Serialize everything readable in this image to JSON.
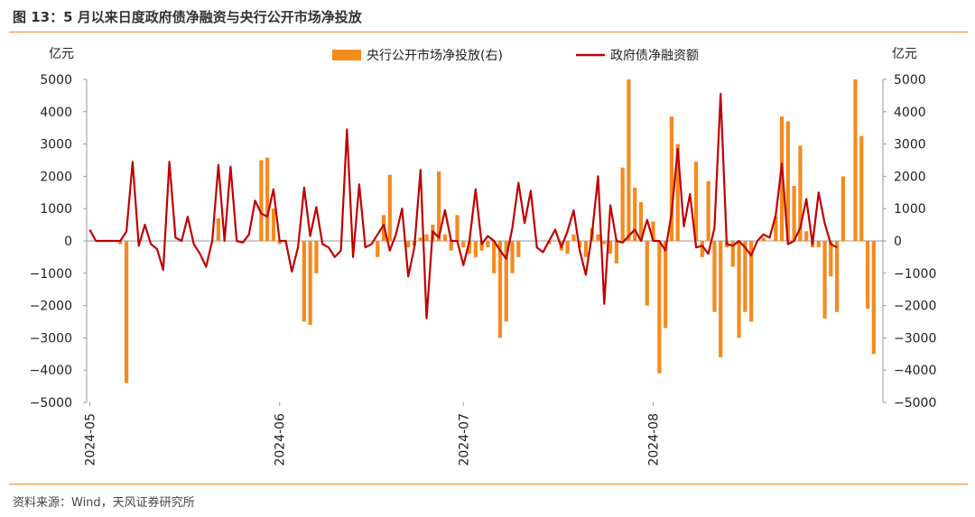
{
  "header": {
    "title": "图 13：5 月以来日度政府债净融资与央行公开市场净投放",
    "source": "资料来源：Wind，天风证券研究所"
  },
  "colors": {
    "bar": "#f58a1f",
    "line": "#c00000",
    "rule": "#f08a24",
    "axis": "#9a9a9a"
  },
  "chart_data": {
    "type": "bar+line",
    "x_ticks": [
      "2024-05",
      "2024-06",
      "2024-07",
      "2024-08"
    ],
    "x_tick_index": [
      0,
      31,
      61,
      92
    ],
    "num_days": 124,
    "left_axis": {
      "unit": "亿元",
      "range": [
        -5000,
        5000
      ],
      "ticks": [
        -5000,
        -4000,
        -3000,
        -2000,
        -1000,
        0,
        1000,
        2000,
        3000,
        4000,
        5000
      ]
    },
    "right_axis": {
      "unit": "亿元",
      "range": [
        -5000,
        5000
      ],
      "ticks": [
        -5000,
        -4000,
        -3000,
        -2000,
        -1000,
        0,
        1000,
        2000,
        3000,
        4000,
        5000
      ]
    },
    "legend": {
      "placement": "top-center"
    },
    "series": [
      {
        "name": "央行公开市场净投放(右)",
        "kind": "bar",
        "axis": "right",
        "points": [
          [
            5,
            -100
          ],
          [
            6,
            -4400
          ],
          [
            21,
            700
          ],
          [
            28,
            2500
          ],
          [
            29,
            2580
          ],
          [
            30,
            1000
          ],
          [
            31,
            -100
          ],
          [
            35,
            -2500
          ],
          [
            36,
            -2600
          ],
          [
            37,
            -1000
          ],
          [
            47,
            -500
          ],
          [
            48,
            800
          ],
          [
            49,
            2050
          ],
          [
            52,
            -200
          ],
          [
            53,
            -150
          ],
          [
            54,
            100
          ],
          [
            55,
            200
          ],
          [
            56,
            500
          ],
          [
            57,
            2150
          ],
          [
            58,
            200
          ],
          [
            59,
            -300
          ],
          [
            60,
            800
          ],
          [
            61,
            -200
          ],
          [
            62,
            -400
          ],
          [
            63,
            -500
          ],
          [
            64,
            -300
          ],
          [
            65,
            -200
          ],
          [
            66,
            -1000
          ],
          [
            67,
            -3000
          ],
          [
            68,
            -2500
          ],
          [
            69,
            -1000
          ],
          [
            70,
            -500
          ],
          [
            75,
            -100
          ],
          [
            77,
            -300
          ],
          [
            78,
            -400
          ],
          [
            79,
            200
          ],
          [
            80,
            -200
          ],
          [
            81,
            -500
          ],
          [
            82,
            400
          ],
          [
            83,
            200
          ],
          [
            84,
            -100
          ],
          [
            85,
            -400
          ],
          [
            86,
            -700
          ],
          [
            87,
            2270
          ],
          [
            88,
            5000
          ],
          [
            89,
            1650
          ],
          [
            90,
            1200
          ],
          [
            91,
            -2000
          ],
          [
            92,
            600
          ],
          [
            93,
            -4100
          ],
          [
            94,
            -2700
          ],
          [
            95,
            3850
          ],
          [
            96,
            3000
          ],
          [
            99,
            2450
          ],
          [
            100,
            -500
          ],
          [
            101,
            1850
          ],
          [
            102,
            -2200
          ],
          [
            103,
            -3600
          ],
          [
            104,
            -200
          ],
          [
            105,
            -800
          ],
          [
            106,
            -3000
          ],
          [
            107,
            -2200
          ],
          [
            108,
            -2500
          ],
          [
            110,
            100
          ],
          [
            112,
            750
          ],
          [
            113,
            3850
          ],
          [
            114,
            3700
          ],
          [
            115,
            1700
          ],
          [
            116,
            2950
          ],
          [
            117,
            300
          ],
          [
            118,
            -200
          ],
          [
            119,
            -200
          ],
          [
            120,
            -2400
          ],
          [
            121,
            -1100
          ],
          [
            122,
            -2200
          ],
          [
            123,
            2000
          ],
          [
            125,
            5000
          ],
          [
            126,
            3250
          ],
          [
            127,
            -2100
          ],
          [
            128,
            -3500
          ]
        ]
      },
      {
        "name": "政府债净融资额",
        "kind": "line",
        "axis": "left",
        "points": [
          [
            0,
            350
          ],
          [
            1,
            0
          ],
          [
            2,
            0
          ],
          [
            3,
            0
          ],
          [
            4,
            0
          ],
          [
            5,
            0
          ],
          [
            6,
            300
          ],
          [
            7,
            2450
          ],
          [
            8,
            -150
          ],
          [
            9,
            500
          ],
          [
            10,
            -100
          ],
          [
            11,
            -250
          ],
          [
            12,
            -900
          ],
          [
            13,
            2450
          ],
          [
            14,
            100
          ],
          [
            15,
            0
          ],
          [
            16,
            750
          ],
          [
            17,
            -100
          ],
          [
            18,
            -400
          ],
          [
            19,
            -800
          ],
          [
            20,
            0
          ],
          [
            21,
            2350
          ],
          [
            22,
            0
          ],
          [
            23,
            2300
          ],
          [
            24,
            0
          ],
          [
            25,
            -50
          ],
          [
            26,
            200
          ],
          [
            27,
            1250
          ],
          [
            28,
            850
          ],
          [
            29,
            750
          ],
          [
            30,
            1600
          ],
          [
            31,
            0
          ],
          [
            32,
            0
          ],
          [
            33,
            -950
          ],
          [
            34,
            -200
          ],
          [
            35,
            1650
          ],
          [
            36,
            150
          ],
          [
            37,
            1050
          ],
          [
            38,
            -100
          ],
          [
            39,
            -200
          ],
          [
            40,
            -500
          ],
          [
            41,
            -300
          ],
          [
            42,
            3450
          ],
          [
            43,
            -500
          ],
          [
            44,
            1750
          ],
          [
            45,
            -200
          ],
          [
            46,
            -100
          ],
          [
            47,
            200
          ],
          [
            48,
            500
          ],
          [
            49,
            -300
          ],
          [
            50,
            200
          ],
          [
            51,
            1000
          ],
          [
            52,
            -1100
          ],
          [
            53,
            -200
          ],
          [
            54,
            2200
          ],
          [
            55,
            -2400
          ],
          [
            56,
            300
          ],
          [
            57,
            100
          ],
          [
            58,
            950
          ],
          [
            59,
            0
          ],
          [
            60,
            0
          ],
          [
            61,
            -750
          ],
          [
            62,
            0
          ],
          [
            63,
            1600
          ],
          [
            64,
            -100
          ],
          [
            65,
            150
          ],
          [
            66,
            0
          ],
          [
            67,
            -300
          ],
          [
            68,
            -550
          ],
          [
            69,
            400
          ],
          [
            70,
            1800
          ],
          [
            71,
            550
          ],
          [
            72,
            1550
          ],
          [
            73,
            -200
          ],
          [
            74,
            -350
          ],
          [
            75,
            0
          ],
          [
            76,
            350
          ],
          [
            77,
            -200
          ],
          [
            78,
            300
          ],
          [
            79,
            950
          ],
          [
            80,
            -300
          ],
          [
            81,
            -1050
          ],
          [
            82,
            200
          ],
          [
            83,
            2000
          ],
          [
            84,
            -1950
          ],
          [
            85,
            1100
          ],
          [
            86,
            0
          ],
          [
            87,
            -50
          ],
          [
            88,
            150
          ],
          [
            89,
            350
          ],
          [
            90,
            0
          ],
          [
            91,
            650
          ],
          [
            92,
            0
          ],
          [
            93,
            0
          ],
          [
            94,
            -300
          ],
          [
            95,
            850
          ],
          [
            96,
            2850
          ],
          [
            97,
            450
          ],
          [
            98,
            1450
          ],
          [
            99,
            -200
          ],
          [
            100,
            -150
          ],
          [
            101,
            -400
          ],
          [
            102,
            400
          ],
          [
            103,
            4550
          ],
          [
            104,
            -100
          ],
          [
            105,
            -150
          ],
          [
            106,
            0
          ],
          [
            107,
            -200
          ],
          [
            108,
            -450
          ],
          [
            109,
            0
          ],
          [
            110,
            200
          ],
          [
            111,
            100
          ],
          [
            112,
            800
          ],
          [
            113,
            2400
          ],
          [
            114,
            -100
          ],
          [
            115,
            0
          ],
          [
            116,
            400
          ],
          [
            117,
            1300
          ],
          [
            118,
            -100
          ],
          [
            119,
            1500
          ],
          [
            120,
            550
          ],
          [
            121,
            -100
          ],
          [
            122,
            -200
          ]
        ]
      }
    ]
  }
}
